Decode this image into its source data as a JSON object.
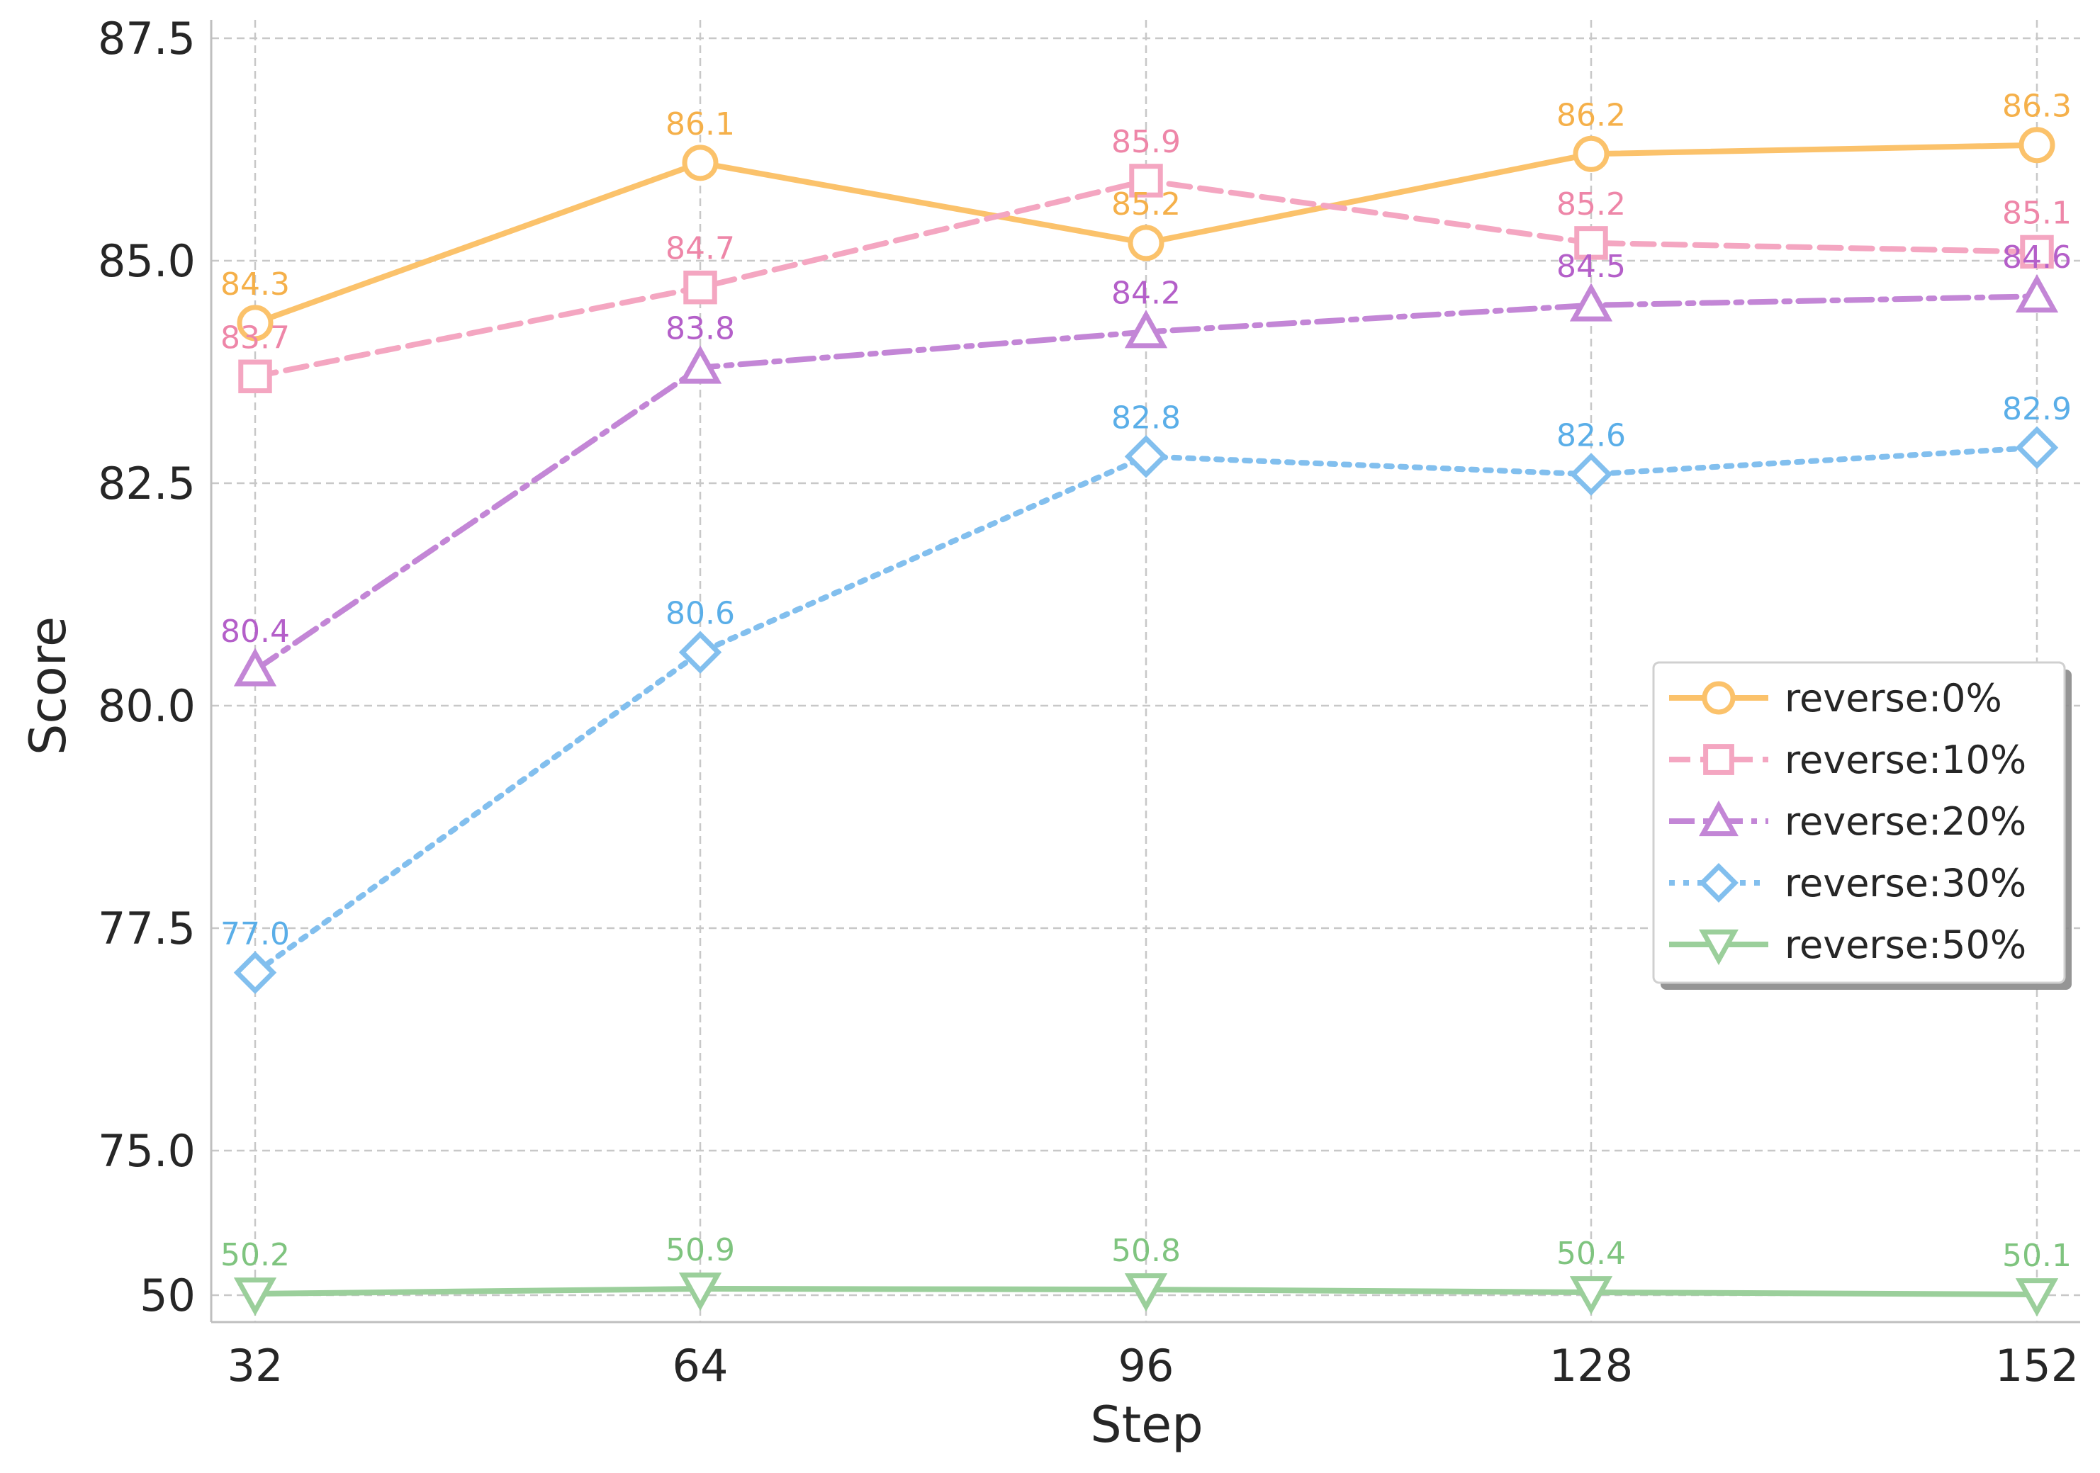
{
  "chart_data": {
    "type": "line",
    "xlabel": "Step",
    "ylabel": "Score",
    "categories": [
      "32",
      "64",
      "96",
      "128",
      "152"
    ],
    "y_ticks": [
      "87.5",
      "85.0",
      "82.5",
      "80.0",
      "77.5",
      "75.0",
      "50"
    ],
    "y_axis_note": "broken axis: 75.0 to 50 compressed",
    "grid": true,
    "legend_position": "center-right",
    "series": [
      {
        "name": "reverse:0%",
        "values": [
          84.3,
          86.1,
          85.2,
          86.2,
          86.3
        ],
        "labels": [
          "84.3",
          "86.1",
          "85.2",
          "86.2",
          "86.3"
        ],
        "color": "#FBC26B",
        "marker": "circle",
        "linestyle": "solid"
      },
      {
        "name": "reverse:10%",
        "values": [
          83.7,
          84.7,
          85.9,
          85.2,
          85.1
        ],
        "labels": [
          "83.7",
          "84.7",
          "85.9",
          "85.2",
          "85.1"
        ],
        "color": "#F4A6C1",
        "marker": "square",
        "linestyle": "dashed"
      },
      {
        "name": "reverse:20%",
        "values": [
          80.4,
          83.8,
          84.2,
          84.5,
          84.6
        ],
        "labels": [
          "80.4",
          "83.8",
          "84.2",
          "84.5",
          "84.6"
        ],
        "color": "#C386D6",
        "marker": "triangle-up",
        "linestyle": "dashdot"
      },
      {
        "name": "reverse:30%",
        "values": [
          77.0,
          80.6,
          82.8,
          82.6,
          82.9
        ],
        "labels": [
          "77.0",
          "80.6",
          "82.8",
          "82.6",
          "82.9"
        ],
        "color": "#82BFEE",
        "marker": "diamond",
        "linestyle": "dotted"
      },
      {
        "name": "reverse:50%",
        "values": [
          50.2,
          50.9,
          50.8,
          50.4,
          50.1
        ],
        "labels": [
          "50.2",
          "50.9",
          "50.8",
          "50.4",
          "50.1"
        ],
        "color": "#9BCF9B",
        "marker": "triangle-down",
        "linestyle": "solid"
      }
    ]
  }
}
